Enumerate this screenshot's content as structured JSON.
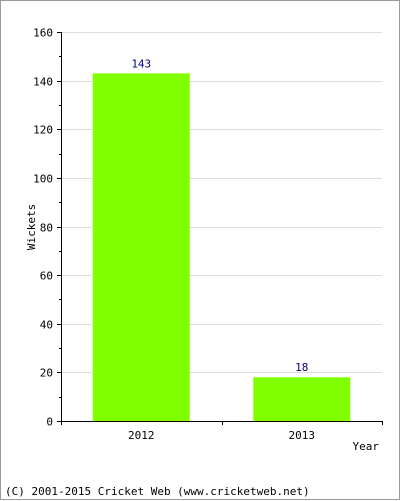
{
  "footer": "(C) 2001-2015 Cricket Web (www.cricketweb.net)",
  "colors": {
    "bar": "#80ff00",
    "grid": "#dddddd",
    "axis": "#000000",
    "data_label": "#000080"
  },
  "chart_data": {
    "type": "bar",
    "title": "",
    "xlabel": "Year",
    "ylabel": "Wickets",
    "categories": [
      "2012",
      "2013"
    ],
    "values": [
      143,
      18
    ],
    "data_labels": [
      "143",
      "18"
    ],
    "ylim": [
      0,
      160
    ],
    "yticks": [
      0,
      20,
      40,
      60,
      80,
      100,
      120,
      140,
      160
    ],
    "ytick_labels": [
      "0",
      "20",
      "40",
      "60",
      "80",
      "100",
      "120",
      "140",
      "160"
    ],
    "grid": true,
    "legend": "none"
  }
}
